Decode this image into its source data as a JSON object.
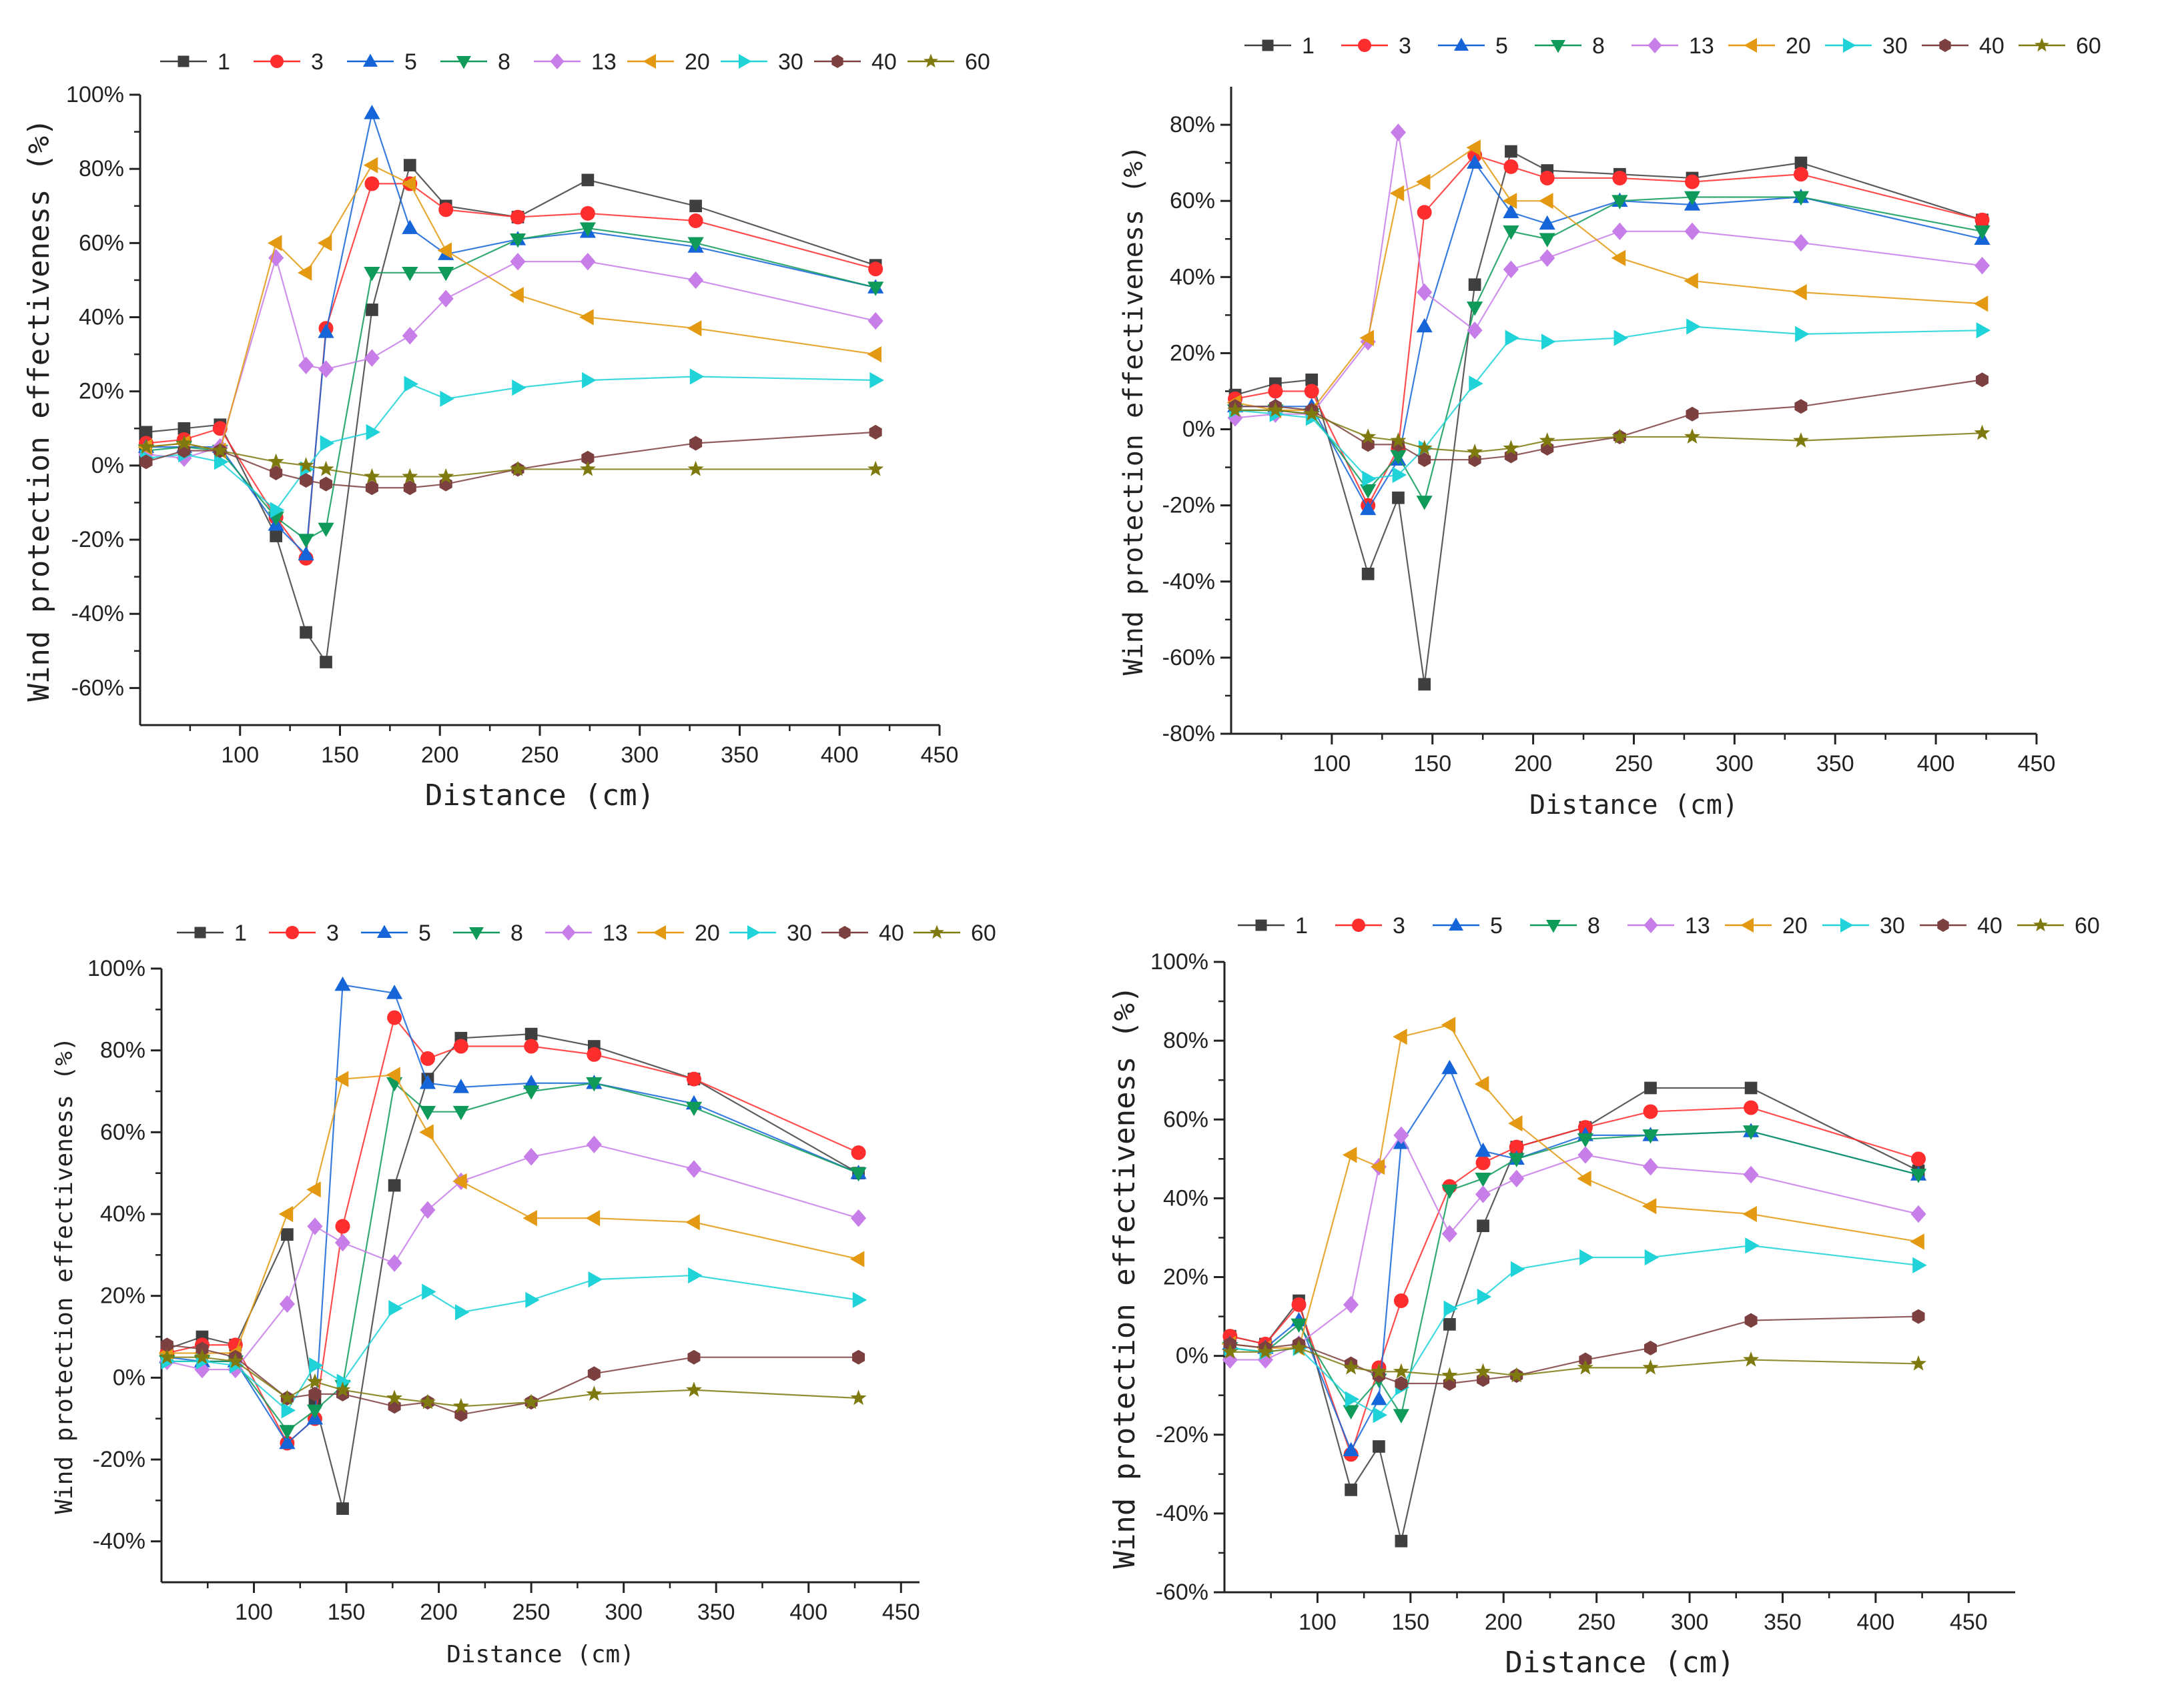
{
  "series_styles": [
    {
      "name": "1",
      "color": "#3f3f3f",
      "marker": "square"
    },
    {
      "name": "3",
      "color": "#ff2e2e",
      "marker": "circle"
    },
    {
      "name": "5",
      "color": "#1565d8",
      "marker": "triangle-up"
    },
    {
      "name": "8",
      "color": "#0f9a5a",
      "marker": "triangle-down"
    },
    {
      "name": "13",
      "color": "#c77ee8",
      "marker": "diamond"
    },
    {
      "name": "20",
      "color": "#e39a12",
      "marker": "triangle-left"
    },
    {
      "name": "30",
      "color": "#1fd3d8",
      "marker": "triangle-right"
    },
    {
      "name": "40",
      "color": "#7d4040",
      "marker": "hexagon"
    },
    {
      "name": "60",
      "color": "#7f7a10",
      "marker": "star"
    }
  ],
  "chart_data": [
    {
      "type": "line",
      "xlabel": "Distance (cm)",
      "ylabel": "Wind protection effectiveness (%)",
      "xlim": [
        50,
        450
      ],
      "ylim": [
        -70,
        100
      ],
      "xticks": [
        "100",
        "150",
        "200",
        "250",
        "300",
        "350",
        "400",
        "450"
      ],
      "yticks": [
        "100%",
        "80%",
        "60%",
        "40%",
        "20%",
        "0%",
        "-20%",
        "-40%",
        "-60%"
      ],
      "legend_position": "top",
      "grid": false,
      "x": [
        53,
        72,
        90,
        118,
        133,
        143,
        166,
        185,
        203,
        239,
        274,
        328,
        418
      ],
      "series": [
        {
          "name": "1",
          "values": [
            9,
            10,
            11,
            -19,
            -45,
            -53,
            42,
            81,
            70,
            67,
            77,
            70,
            54
          ]
        },
        {
          "name": "3",
          "values": [
            6,
            7,
            10,
            -14,
            -25,
            37,
            76,
            76,
            69,
            67,
            68,
            66,
            53
          ]
        },
        {
          "name": "5",
          "values": [
            5,
            5,
            5,
            -16,
            -24,
            36,
            95,
            64,
            57,
            61,
            63,
            59,
            48
          ]
        },
        {
          "name": "8",
          "values": [
            4,
            5,
            4,
            -14,
            -20,
            -17,
            52,
            52,
            52,
            61,
            64,
            60,
            48
          ]
        },
        {
          "name": "13",
          "values": [
            3,
            2,
            5,
            56,
            27,
            26,
            29,
            35,
            45,
            55,
            55,
            50,
            39
          ]
        },
        {
          "name": "20",
          "values": [
            5,
            6,
            4,
            60,
            52,
            60,
            81,
            76,
            58,
            46,
            40,
            37,
            30
          ]
        },
        {
          "name": "30",
          "values": [
            2,
            3,
            1,
            -12,
            -1,
            6,
            9,
            22,
            18,
            21,
            23,
            24,
            23
          ]
        },
        {
          "name": "40",
          "values": [
            1,
            4,
            4,
            -2,
            -4,
            -5,
            -6,
            -6,
            -5,
            -1,
            2,
            6,
            9
          ]
        },
        {
          "name": "60",
          "values": [
            5,
            6,
            4,
            1,
            0,
            -1,
            -3,
            -3,
            -3,
            -1,
            -1,
            -1,
            -1
          ]
        }
      ]
    },
    {
      "type": "line",
      "xlabel": "Distance (cm)",
      "ylabel": "Wind protection effectiveness (%)",
      "xlim": [
        50,
        450
      ],
      "ylim": [
        -80,
        90
      ],
      "xticks": [
        "100",
        "150",
        "200",
        "250",
        "300",
        "350",
        "400",
        "450"
      ],
      "yticks": [
        "80%",
        "60%",
        "40%",
        "20%",
        "0%",
        "-20%",
        "-40%",
        "-60%",
        "-80%"
      ],
      "legend_position": "top",
      "grid": false,
      "x": [
        52,
        72,
        90,
        118,
        133,
        146,
        171,
        189,
        207,
        243,
        279,
        333,
        423
      ],
      "series": [
        {
          "name": "1",
          "values": [
            9,
            12,
            13,
            -38,
            -18,
            -67,
            38,
            73,
            68,
            67,
            66,
            70,
            55
          ]
        },
        {
          "name": "3",
          "values": [
            8,
            10,
            10,
            -20,
            -5,
            57,
            72,
            69,
            66,
            66,
            65,
            67,
            55
          ]
        },
        {
          "name": "5",
          "values": [
            6,
            6,
            6,
            -21,
            -8,
            27,
            70,
            57,
            54,
            60,
            59,
            61,
            50
          ]
        },
        {
          "name": "8",
          "values": [
            5,
            5,
            4,
            -16,
            -7,
            -19,
            32,
            52,
            50,
            60,
            61,
            61,
            52
          ]
        },
        {
          "name": "13",
          "values": [
            3,
            4,
            4,
            23,
            78,
            36,
            26,
            42,
            45,
            52,
            52,
            49,
            43
          ]
        },
        {
          "name": "20",
          "values": [
            7,
            5,
            5,
            24,
            62,
            65,
            74,
            60,
            60,
            45,
            39,
            36,
            33
          ]
        },
        {
          "name": "30",
          "values": [
            5,
            4,
            3,
            -13,
            -12,
            -5,
            12,
            24,
            23,
            24,
            27,
            25,
            26
          ]
        },
        {
          "name": "40",
          "values": [
            6,
            6,
            5,
            -4,
            -4,
            -8,
            -8,
            -7,
            -5,
            -2,
            4,
            6,
            13
          ]
        },
        {
          "name": "60",
          "values": [
            5,
            5,
            4,
            -2,
            -3,
            -5,
            -6,
            -5,
            -3,
            -2,
            -2,
            -3,
            -1
          ]
        }
      ]
    },
    {
      "type": "line",
      "xlabel": "Distance (cm)",
      "ylabel": "Wind protection effectiveness (%)",
      "xlim": [
        50,
        460
      ],
      "ylim": [
        -50,
        100
      ],
      "xticks": [
        "100",
        "150",
        "200",
        "250",
        "300",
        "350",
        "400",
        "450"
      ],
      "yticks": [
        "100%",
        "80%",
        "60%",
        "40%",
        "20%",
        "0%",
        "-20%",
        "-40%"
      ],
      "legend_position": "top",
      "grid": false,
      "x": [
        53,
        72,
        90,
        118,
        133,
        148,
        176,
        194,
        212,
        250,
        284,
        338,
        427
      ],
      "series": [
        {
          "name": "1",
          "values": [
            7,
            10,
            8,
            35,
            -6,
            -32,
            47,
            73,
            83,
            84,
            81,
            73,
            50
          ]
        },
        {
          "name": "3",
          "values": [
            6,
            8,
            8,
            -16,
            -10,
            37,
            88,
            78,
            81,
            81,
            79,
            73,
            55
          ]
        },
        {
          "name": "5",
          "values": [
            5,
            4,
            4,
            -16,
            -10,
            96,
            94,
            72,
            71,
            72,
            72,
            67,
            50
          ]
        },
        {
          "name": "8",
          "values": [
            4,
            4,
            4,
            -13,
            -8,
            -2,
            72,
            65,
            65,
            70,
            72,
            66,
            50
          ]
        },
        {
          "name": "13",
          "values": [
            4,
            2,
            2,
            18,
            37,
            33,
            28,
            41,
            48,
            54,
            57,
            51,
            39
          ]
        },
        {
          "name": "20",
          "values": [
            6,
            6,
            6,
            40,
            46,
            73,
            74,
            60,
            48,
            39,
            39,
            38,
            29
          ]
        },
        {
          "name": "30",
          "values": [
            4,
            4,
            3,
            -8,
            3,
            -1,
            17,
            21,
            16,
            19,
            24,
            25,
            19
          ]
        },
        {
          "name": "40",
          "values": [
            8,
            7,
            5,
            -5,
            -4,
            -4,
            -7,
            -6,
            -9,
            -6,
            1,
            5,
            5
          ]
        },
        {
          "name": "60",
          "values": [
            5,
            5,
            4,
            -5,
            -1,
            -3,
            -5,
            -6,
            -7,
            -6,
            -4,
            -3,
            -5
          ]
        }
      ]
    },
    {
      "type": "line",
      "xlabel": "Distance (cm)",
      "ylabel": "Wind protection effectiveness (%)",
      "xlim": [
        50,
        475
      ],
      "ylim": [
        -60,
        100
      ],
      "xticks": [
        "100",
        "150",
        "200",
        "250",
        "300",
        "350",
        "400",
        "450"
      ],
      "yticks": [
        "100%",
        "80%",
        "60%",
        "40%",
        "20%",
        "0%",
        "-20%",
        "-40%",
        "-60%"
      ],
      "legend_position": "top",
      "grid": false,
      "x": [
        53,
        72,
        90,
        118,
        133,
        145,
        171,
        189,
        207,
        244,
        279,
        333,
        423
      ],
      "series": [
        {
          "name": "1",
          "values": [
            5,
            3,
            14,
            -34,
            -23,
            -47,
            8,
            33,
            53,
            58,
            68,
            68,
            47
          ]
        },
        {
          "name": "3",
          "values": [
            5,
            3,
            13,
            -25,
            -3,
            14,
            43,
            49,
            53,
            58,
            62,
            63,
            50
          ]
        },
        {
          "name": "5",
          "values": [
            3,
            2,
            9,
            -24,
            -11,
            54,
            73,
            52,
            50,
            56,
            56,
            57,
            46
          ]
        },
        {
          "name": "8",
          "values": [
            2,
            1,
            8,
            -14,
            -6,
            -15,
            42,
            45,
            50,
            55,
            56,
            57,
            46
          ]
        },
        {
          "name": "13",
          "values": [
            -1,
            -1,
            3,
            13,
            48,
            56,
            31,
            41,
            45,
            51,
            48,
            46,
            36
          ]
        },
        {
          "name": "20",
          "values": [
            3,
            2,
            2,
            51,
            48,
            81,
            84,
            69,
            59,
            45,
            38,
            36,
            29
          ]
        },
        {
          "name": "30",
          "values": [
            2,
            1,
            2,
            -11,
            -15,
            -8,
            12,
            15,
            22,
            25,
            25,
            28,
            23
          ]
        },
        {
          "name": "40",
          "values": [
            3,
            2,
            3,
            -2,
            -5,
            -7,
            -7,
            -6,
            -5,
            -1,
            2,
            9,
            10
          ]
        },
        {
          "name": "60",
          "values": [
            1,
            1,
            2,
            -3,
            -4,
            -4,
            -5,
            -4,
            -5,
            -3,
            -3,
            -1,
            -2
          ]
        }
      ]
    }
  ]
}
